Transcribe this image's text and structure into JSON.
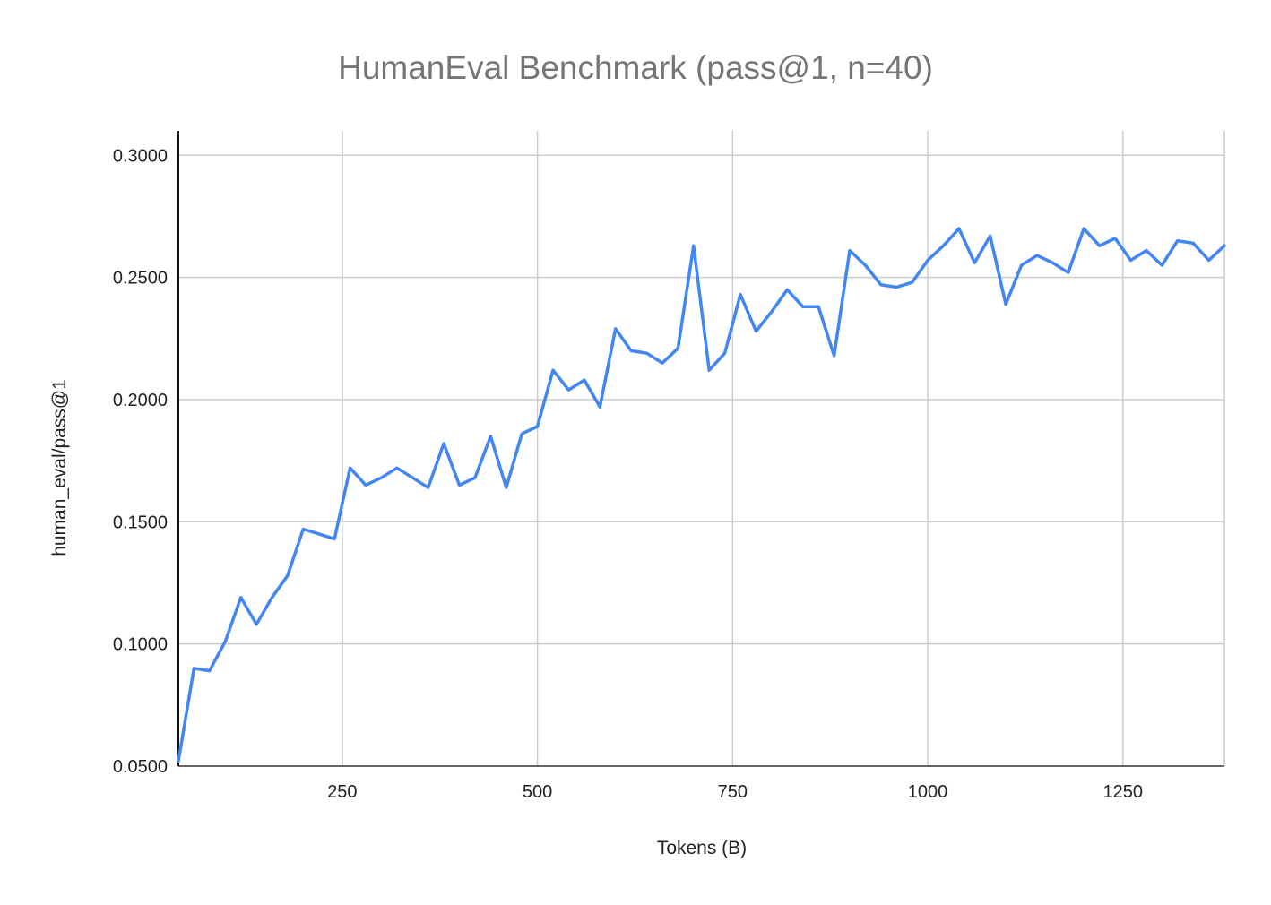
{
  "chart_data": {
    "type": "line",
    "title": "HumanEval Benchmark (pass@1, n=40)",
    "xlabel": "Tokens (B)",
    "ylabel": "human_eval/pass@1",
    "xlim": [
      40,
      1380
    ],
    "ylim": [
      0.05,
      0.31
    ],
    "x_ticks": [
      250,
      500,
      750,
      1000,
      1250
    ],
    "x_tick_labels": [
      "250",
      "500",
      "750",
      "1000",
      "1250"
    ],
    "y_ticks": [
      0.05,
      0.1,
      0.15,
      0.2,
      0.25,
      0.3
    ],
    "y_tick_labels": [
      "0.0500",
      "0.1000",
      "0.1500",
      "0.2000",
      "0.2500",
      "0.3000"
    ],
    "grid": true,
    "legend": "none",
    "series_color": "#4285f4",
    "series": [
      {
        "x": [
          40,
          60,
          80,
          100,
          120,
          140,
          160,
          180,
          200,
          220,
          240,
          260,
          280,
          300,
          320,
          340,
          360,
          380,
          400,
          420,
          440,
          460,
          480,
          500,
          520,
          540,
          560,
          580,
          600,
          620,
          640,
          660,
          680,
          700,
          720,
          740,
          760,
          780,
          800,
          820,
          840,
          860,
          880,
          900,
          920,
          940,
          960,
          980,
          1000,
          1020,
          1040,
          1060,
          1080,
          1100,
          1120,
          1140,
          1160,
          1180,
          1200,
          1220,
          1240,
          1260,
          1280,
          1300,
          1320,
          1340,
          1360,
          1380
        ],
        "values": [
          0.052,
          0.09,
          0.089,
          0.101,
          0.119,
          0.108,
          0.119,
          0.128,
          0.147,
          0.145,
          0.143,
          0.172,
          0.165,
          0.168,
          0.172,
          0.168,
          0.164,
          0.182,
          0.165,
          0.168,
          0.185,
          0.164,
          0.186,
          0.189,
          0.212,
          0.204,
          0.208,
          0.197,
          0.229,
          0.22,
          0.219,
          0.215,
          0.221,
          0.263,
          0.212,
          0.219,
          0.243,
          0.228,
          0.236,
          0.245,
          0.238,
          0.238,
          0.218,
          0.261,
          0.255,
          0.247,
          0.246,
          0.248,
          0.257,
          0.263,
          0.27,
          0.256,
          0.267,
          0.239,
          0.255,
          0.259,
          0.256,
          0.252,
          0.27,
          0.263,
          0.266,
          0.257,
          0.261,
          0.255,
          0.265,
          0.264,
          0.257,
          0.263
        ]
      }
    ]
  }
}
